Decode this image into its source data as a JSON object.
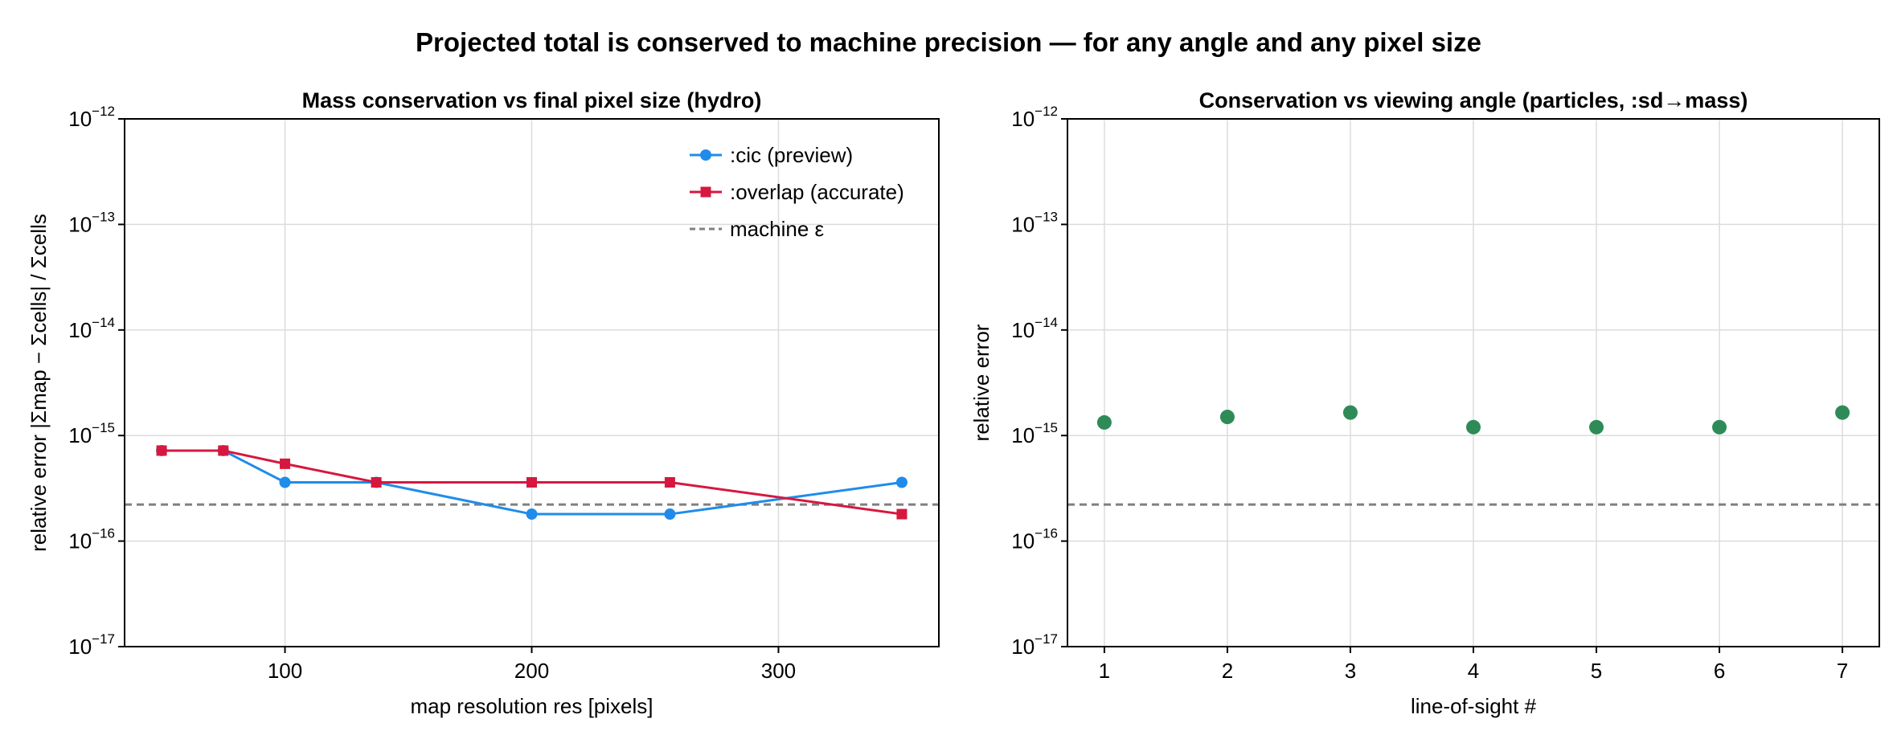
{
  "figure_title": "Projected total is conserved to machine precision — for any angle and any pixel size",
  "chart_data": [
    {
      "type": "line",
      "title": "Mass conservation vs final pixel size (hydro)",
      "xlabel": "map resolution  res  [pixels]",
      "ylabel": "relative error  |Σmap − Σcells| / Σcells",
      "yscale": "log",
      "xlim": [
        35,
        365
      ],
      "ylim": [
        1e-17,
        1e-12
      ],
      "xticks": [
        100,
        200,
        300
      ],
      "yticks": [
        {
          "value": 1e-17,
          "base": "10",
          "exp": "−17"
        },
        {
          "value": 1e-16,
          "base": "10",
          "exp": "−16"
        },
        {
          "value": 1e-15,
          "base": "10",
          "exp": "−15"
        },
        {
          "value": 1e-14,
          "base": "10",
          "exp": "−14"
        },
        {
          "value": 1e-13,
          "base": "10",
          "exp": "−13"
        },
        {
          "value": 1e-12,
          "base": "10",
          "exp": "−12"
        }
      ],
      "grid": true,
      "legend_position": "top-right",
      "series": [
        {
          "name": ":cic (preview)",
          "color": "#1f8ceb",
          "marker": "circle",
          "x": [
            50,
            75,
            100,
            137,
            200,
            256,
            350
          ],
          "y": [
            7.2e-16,
            7.2e-16,
            3.6e-16,
            3.6e-16,
            1.8e-16,
            1.8e-16,
            3.6e-16
          ]
        },
        {
          "name": ":overlap (accurate)",
          "color": "#d6183f",
          "marker": "square",
          "x": [
            50,
            75,
            100,
            137,
            200,
            256,
            350
          ],
          "y": [
            7.2e-16,
            7.2e-16,
            5.4e-16,
            3.6e-16,
            3.6e-16,
            3.6e-16,
            1.8e-16
          ]
        }
      ],
      "reference_line": {
        "name": "machine ε",
        "y": 2.22e-16,
        "color": "#808080",
        "style": "dashed"
      }
    },
    {
      "type": "scatter",
      "title": "Conservation vs viewing angle (particles, :sd→mass)",
      "xlabel": "line-of-sight #",
      "ylabel": "relative error",
      "yscale": "log",
      "xlim": [
        0.7,
        7.3
      ],
      "ylim": [
        1e-17,
        1e-12
      ],
      "xticks": [
        1,
        2,
        3,
        4,
        5,
        6,
        7
      ],
      "yticks": [
        {
          "value": 1e-17,
          "base": "10",
          "exp": "−17"
        },
        {
          "value": 1e-16,
          "base": "10",
          "exp": "−16"
        },
        {
          "value": 1e-15,
          "base": "10",
          "exp": "−15"
        },
        {
          "value": 1e-14,
          "base": "10",
          "exp": "−14"
        },
        {
          "value": 1e-13,
          "base": "10",
          "exp": "−13"
        },
        {
          "value": 1e-12,
          "base": "10",
          "exp": "−12"
        }
      ],
      "grid": true,
      "series": [
        {
          "color": "#2e8b57",
          "marker": "circle",
          "x": [
            1,
            2,
            3,
            4,
            5,
            6,
            7
          ],
          "y": [
            1.33e-15,
            1.5e-15,
            1.65e-15,
            1.2e-15,
            1.2e-15,
            1.2e-15,
            1.65e-15
          ]
        }
      ],
      "reference_line": {
        "y": 2.22e-16,
        "color": "#808080",
        "style": "dashed"
      }
    }
  ]
}
